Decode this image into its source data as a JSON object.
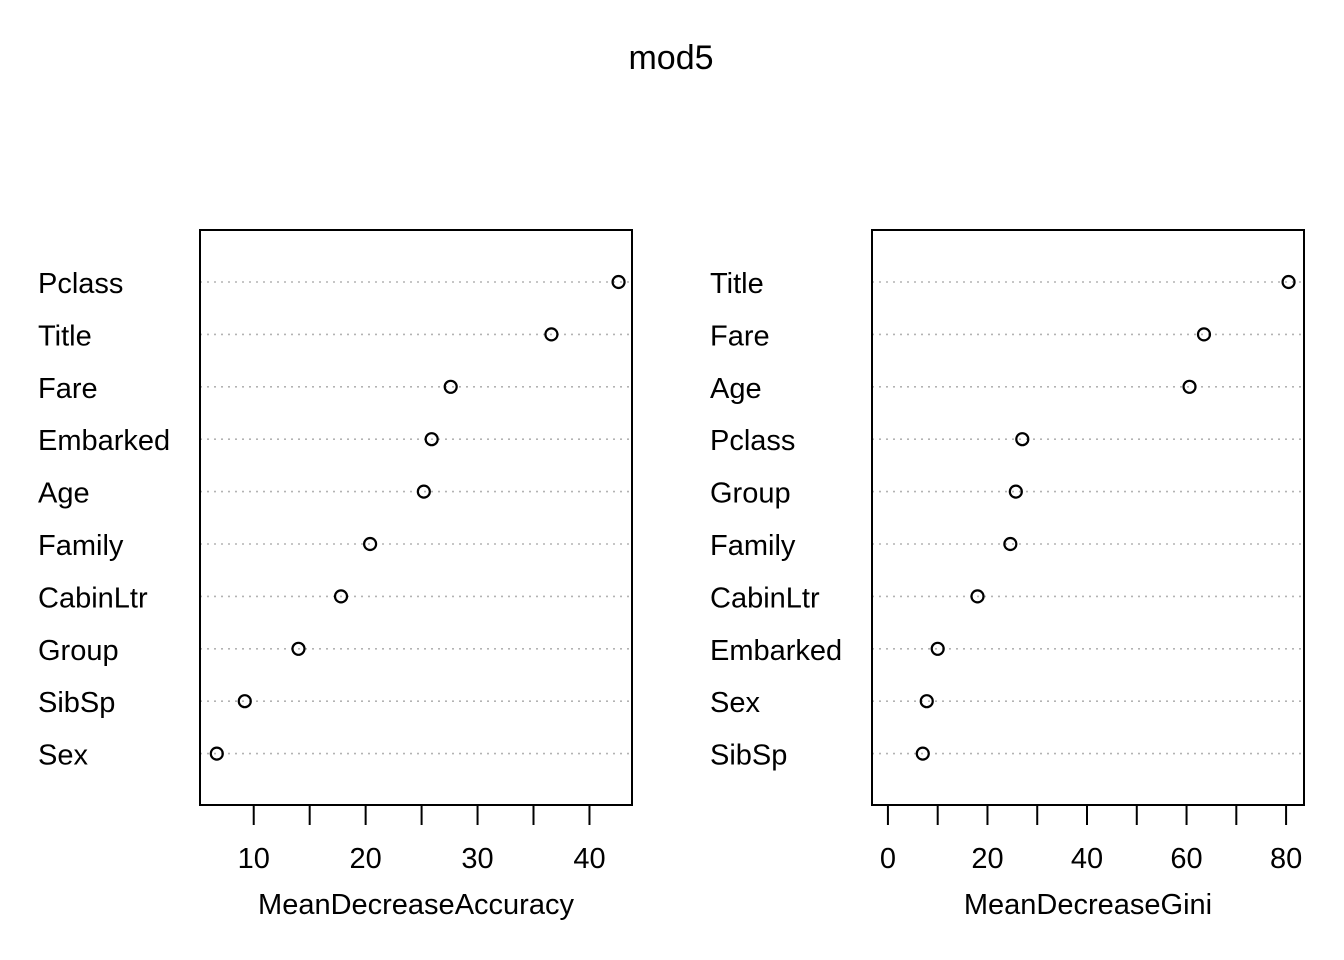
{
  "title": "mod5",
  "chart_data": [
    {
      "type": "scatter",
      "subtype": "dotchart",
      "xlabel": "MeanDecreaseAccuracy",
      "xlim": [
        5.2,
        43.8
      ],
      "xticks": [
        10,
        20,
        30,
        40
      ],
      "grid": "dotted horizontal lines per category",
      "categories": [
        "Pclass",
        "Title",
        "Fare",
        "Embarked",
        "Age",
        "Family",
        "CabinLtr",
        "Group",
        "SibSp",
        "Sex"
      ],
      "values": [
        42.6,
        36.6,
        27.6,
        25.9,
        25.2,
        20.4,
        17.8,
        14.0,
        9.2,
        6.7
      ]
    },
    {
      "type": "scatter",
      "subtype": "dotchart",
      "xlabel": "MeanDecreaseGini",
      "xlim": [
        -3.2,
        83.6
      ],
      "xticks": [
        0,
        20,
        40,
        60,
        80
      ],
      "grid": "dotted horizontal lines per category",
      "categories": [
        "Title",
        "Fare",
        "Age",
        "Pclass",
        "Group",
        "Family",
        "CabinLtr",
        "Embarked",
        "Sex",
        "SibSp"
      ],
      "values": [
        80.5,
        63.5,
        60.6,
        27.0,
        25.7,
        24.6,
        18.0,
        10.0,
        7.8,
        7.0
      ]
    }
  ]
}
